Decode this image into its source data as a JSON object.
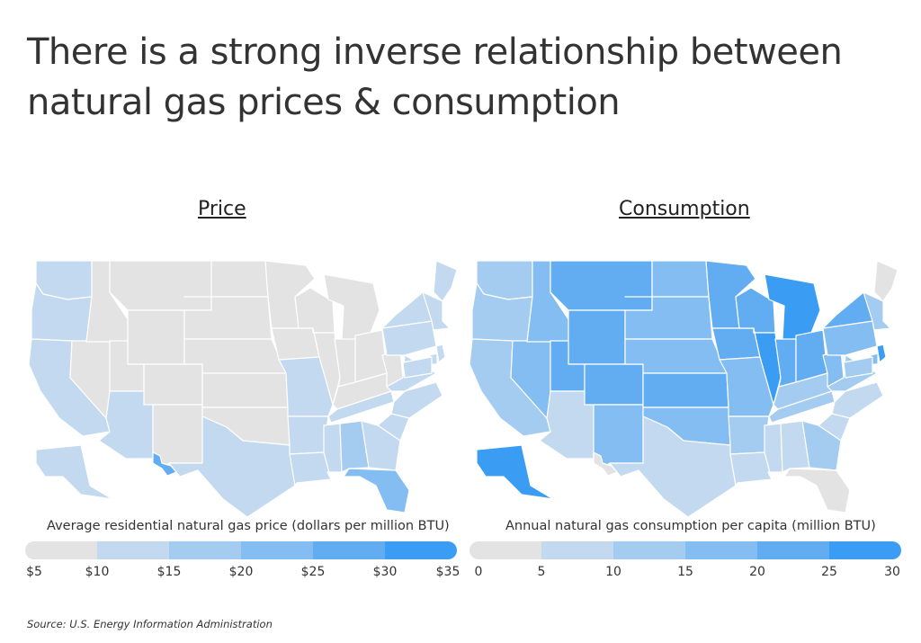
{
  "title": "There is a strong inverse relationship between natural gas prices & consumption",
  "source": "Source:  U.S. Energy Information Administration",
  "colors": {
    "none": "#e3e3e3",
    "scale": [
      "#e3e3e3",
      "#c3d9ef",
      "#a4ccf1",
      "#84bdf1",
      "#62acf2",
      "#3b9cf4"
    ]
  },
  "price": {
    "heading": "Price",
    "legend_title": "Average residential natural gas price (dollars per million BTU)",
    "ticks": [
      "$5",
      "$10",
      "$15",
      "$20",
      "$25",
      "$30",
      "$35"
    ],
    "states": {
      "WA": 1,
      "OR": 1,
      "CA": 1,
      "NV": 0,
      "ID": 0,
      "MT": 0,
      "WY": 0,
      "UT": 0,
      "AZ": 1,
      "CO": 0,
      "NM": 0,
      "ND": 0,
      "SD": 0,
      "NE": 0,
      "KS": 0,
      "OK": 0,
      "TX": 1,
      "MN": 0,
      "IA": 0,
      "MO": 1,
      "AR": 1,
      "LA": 1,
      "WI": 0,
      "IL": 0,
      "MI": 0,
      "IN": 0,
      "OH": 0,
      "KY": 0,
      "TN": 1,
      "MS": 1,
      "AL": 2,
      "WV": 0,
      "VA": 1,
      "NC": 1,
      "SC": 1,
      "GA": 1,
      "FL": 3,
      "PA": 1,
      "NY": 1,
      "ME": 1,
      "NE_US": 1,
      "NJ": 1,
      "DE": 1,
      "MD": 1,
      "AK": 1,
      "HI": 4
    }
  },
  "consumption": {
    "heading": "Consumption",
    "legend_title": "Annual natural gas consumption per capita (million BTU)",
    "ticks": [
      "0",
      "5",
      "10",
      "15",
      "20",
      "25",
      "30"
    ],
    "states": {
      "WA": 2,
      "OR": 2,
      "CA": 2,
      "NV": 3,
      "ID": 3,
      "MT": 4,
      "WY": 4,
      "UT": 4,
      "AZ": 1,
      "CO": 4,
      "NM": 3,
      "ND": 3,
      "SD": 3,
      "NE": 3,
      "KS": 4,
      "OK": 3,
      "TX": 1,
      "MN": 4,
      "IA": 4,
      "MO": 3,
      "AR": 2,
      "LA": 1,
      "WI": 4,
      "IL": 5,
      "MI": 5,
      "IN": 4,
      "OH": 4,
      "KY": 2,
      "TN": 2,
      "MS": 1,
      "AL": 1,
      "WV": 3,
      "VA": 2,
      "NC": 1,
      "SC": 1,
      "GA": 2,
      "FL": 0,
      "PA": 3,
      "NY": 4,
      "ME": 0,
      "NE_US": 2,
      "NJ": 5,
      "DE": 3,
      "MD": 2,
      "AK": 5,
      "HI": 0
    }
  }
}
